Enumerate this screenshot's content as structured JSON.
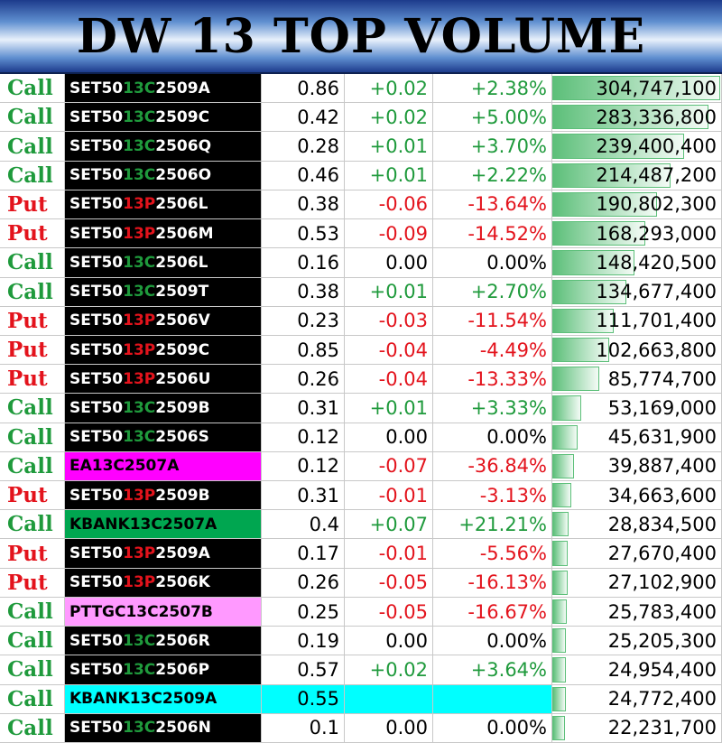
{
  "header": {
    "title": "DW 13 TOP VOLUME"
  },
  "table": {
    "rows": [
      {
        "type": "Call",
        "color": "#1f9a3c",
        "name": [
          "SET50",
          "13C",
          "2509A"
        ],
        "name_bg": "#000000",
        "name_fg": "#ffffff",
        "price": 0.86,
        "change": "+0.02",
        "pct": "+2.38%",
        "change_color": "#1f9a3c",
        "volume": {
          "value": 304747100,
          "label": "304,747,100"
        }
      },
      {
        "type": "Call",
        "color": "#1f9a3c",
        "name": [
          "SET50",
          "13C",
          "2509C"
        ],
        "name_bg": "#000000",
        "name_fg": "#ffffff",
        "price": 0.42,
        "change": "+0.02",
        "pct": "+5.00%",
        "change_color": "#1f9a3c",
        "volume": {
          "value": 283336800,
          "label": "283,336,800"
        }
      },
      {
        "type": "Call",
        "color": "#1f9a3c",
        "name": [
          "SET50",
          "13C",
          "2506Q"
        ],
        "name_bg": "#000000",
        "name_fg": "#ffffff",
        "price": 0.28,
        "change": "+0.01",
        "pct": "+3.70%",
        "change_color": "#1f9a3c",
        "volume": {
          "value": 239400400,
          "label": "239,400,400"
        }
      },
      {
        "type": "Call",
        "color": "#1f9a3c",
        "name": [
          "SET50",
          "13C",
          "2506O"
        ],
        "name_bg": "#000000",
        "name_fg": "#ffffff",
        "price": 0.46,
        "change": "+0.01",
        "pct": "+2.22%",
        "change_color": "#1f9a3c",
        "volume": {
          "value": 214487200,
          "label": "214,487,200"
        }
      },
      {
        "type": "Put",
        "color": "#e3131c",
        "name": [
          "SET50",
          "13P",
          "2506L"
        ],
        "name_bg": "#000000",
        "name_fg": "#ffffff",
        "price": 0.38,
        "change": "-0.06",
        "pct": "-13.64%",
        "change_color": "#e3131c",
        "volume": {
          "value": 190802300,
          "label": "190,802,300"
        }
      },
      {
        "type": "Put",
        "color": "#e3131c",
        "name": [
          "SET50",
          "13P",
          "2506M"
        ],
        "name_bg": "#000000",
        "name_fg": "#ffffff",
        "price": 0.53,
        "change": "-0.09",
        "pct": "-14.52%",
        "change_color": "#e3131c",
        "volume": {
          "value": 168293000,
          "label": "168,293,000"
        }
      },
      {
        "type": "Call",
        "color": "#1f9a3c",
        "name": [
          "SET50",
          "13C",
          "2506L"
        ],
        "name_bg": "#000000",
        "name_fg": "#ffffff",
        "price": 0.16,
        "change": "0.00",
        "pct": "0.00%",
        "change_color": "#000000",
        "volume": {
          "value": 148420500,
          "label": "148,420,500"
        }
      },
      {
        "type": "Call",
        "color": "#1f9a3c",
        "name": [
          "SET50",
          "13C",
          "2509T"
        ],
        "name_bg": "#000000",
        "name_fg": "#ffffff",
        "price": 0.38,
        "change": "+0.01",
        "pct": "+2.70%",
        "change_color": "#1f9a3c",
        "volume": {
          "value": 134677400,
          "label": "134,677,400"
        }
      },
      {
        "type": "Put",
        "color": "#e3131c",
        "name": [
          "SET50",
          "13P",
          "2506V"
        ],
        "name_bg": "#000000",
        "name_fg": "#ffffff",
        "price": 0.23,
        "change": "-0.03",
        "pct": "-11.54%",
        "change_color": "#e3131c",
        "volume": {
          "value": 111701400,
          "label": "111,701,400"
        }
      },
      {
        "type": "Put",
        "color": "#e3131c",
        "name": [
          "SET50",
          "13P",
          "2509C"
        ],
        "name_bg": "#000000",
        "name_fg": "#ffffff",
        "price": 0.85,
        "change": "-0.04",
        "pct": "-4.49%",
        "change_color": "#e3131c",
        "volume": {
          "value": 102663800,
          "label": "102,663,800"
        }
      },
      {
        "type": "Put",
        "color": "#e3131c",
        "name": [
          "SET50",
          "13P",
          "2506U"
        ],
        "name_bg": "#000000",
        "name_fg": "#ffffff",
        "price": 0.26,
        "change": "-0.04",
        "pct": "-13.33%",
        "change_color": "#e3131c",
        "volume": {
          "value": 85774700,
          "label": "85,774,700"
        }
      },
      {
        "type": "Call",
        "color": "#1f9a3c",
        "name": [
          "SET50",
          "13C",
          "2509B"
        ],
        "name_bg": "#000000",
        "name_fg": "#ffffff",
        "price": 0.31,
        "change": "+0.01",
        "pct": "+3.33%",
        "change_color": "#1f9a3c",
        "volume": {
          "value": 53169000,
          "label": "53,169,000"
        }
      },
      {
        "type": "Call",
        "color": "#1f9a3c",
        "name": [
          "SET50",
          "13C",
          "2506S"
        ],
        "name_bg": "#000000",
        "name_fg": "#ffffff",
        "price": 0.12,
        "change": "0.00",
        "pct": "0.00%",
        "change_color": "#000000",
        "volume": {
          "value": 45631900,
          "label": "45,631,900"
        }
      },
      {
        "type": "Call",
        "color": "#1f9a3c",
        "name": [
          "EA13C2507A"
        ],
        "name_bg": "#ff00ff",
        "name_fg": "#000000",
        "price": 0.12,
        "change": "-0.07",
        "pct": "-36.84%",
        "change_color": "#e3131c",
        "volume": {
          "value": 39887400,
          "label": "39,887,400"
        }
      },
      {
        "type": "Put",
        "color": "#e3131c",
        "name": [
          "SET50",
          "13P",
          "2509B"
        ],
        "name_bg": "#000000",
        "name_fg": "#ffffff",
        "price": 0.31,
        "change": "-0.01",
        "pct": "-3.13%",
        "change_color": "#e3131c",
        "volume": {
          "value": 34663600,
          "label": "34,663,600"
        }
      },
      {
        "type": "Call",
        "color": "#1f9a3c",
        "name": [
          "KBANK13C2507A"
        ],
        "name_bg": "#00a650",
        "name_fg": "#000000",
        "price": 0.4,
        "change": "+0.07",
        "pct": "+21.21%",
        "change_color": "#1f9a3c",
        "volume": {
          "value": 28834500,
          "label": "28,834,500"
        }
      },
      {
        "type": "Put",
        "color": "#e3131c",
        "name": [
          "SET50",
          "13P",
          "2509A"
        ],
        "name_bg": "#000000",
        "name_fg": "#ffffff",
        "price": 0.17,
        "change": "-0.01",
        "pct": "-5.56%",
        "change_color": "#e3131c",
        "volume": {
          "value": 27670400,
          "label": "27,670,400"
        }
      },
      {
        "type": "Put",
        "color": "#e3131c",
        "name": [
          "SET50",
          "13P",
          "2506K"
        ],
        "name_bg": "#000000",
        "name_fg": "#ffffff",
        "price": 0.26,
        "change": "-0.05",
        "pct": "-16.13%",
        "change_color": "#e3131c",
        "volume": {
          "value": 27102900,
          "label": "27,102,900"
        }
      },
      {
        "type": "Call",
        "color": "#1f9a3c",
        "name": [
          "PTTGC13C2507B"
        ],
        "name_bg": "#ff99ff",
        "name_fg": "#000000",
        "price": 0.25,
        "change": "-0.05",
        "pct": "-16.67%",
        "change_color": "#e3131c",
        "volume": {
          "value": 25783400,
          "label": "25,783,400"
        }
      },
      {
        "type": "Call",
        "color": "#1f9a3c",
        "name": [
          "SET50",
          "13C",
          "2506R"
        ],
        "name_bg": "#000000",
        "name_fg": "#ffffff",
        "price": 0.19,
        "change": "0.00",
        "pct": "0.00%",
        "change_color": "#000000",
        "volume": {
          "value": 25205300,
          "label": "25,205,300"
        }
      },
      {
        "type": "Call",
        "color": "#1f9a3c",
        "name": [
          "SET50",
          "13C",
          "2506P"
        ],
        "name_bg": "#000000",
        "name_fg": "#ffffff",
        "price": 0.57,
        "change": "+0.02",
        "pct": "+3.64%",
        "change_color": "#1f9a3c",
        "volume": {
          "value": 24954400,
          "label": "24,954,400"
        }
      },
      {
        "type": "Call",
        "color": "#1f9a3c",
        "name": [
          "KBANK13C2509A"
        ],
        "name_bg": "#00ffff",
        "name_fg": "#000000",
        "row_bg": "#00ffff",
        "price": 0.55,
        "change": null,
        "pct": null,
        "change_color": "#000000",
        "volume": {
          "value": 24772400,
          "label": "24,772,400"
        }
      },
      {
        "type": "Call",
        "color": "#1f9a3c",
        "name": [
          "SET50",
          "13C",
          "2506N"
        ],
        "name_bg": "#000000",
        "name_fg": "#ffffff",
        "price": 0.1,
        "change": "0.00",
        "pct": "0.00%",
        "change_color": "#000000",
        "volume": {
          "value": 22231700,
          "label": "22,231,700"
        }
      }
    ]
  }
}
